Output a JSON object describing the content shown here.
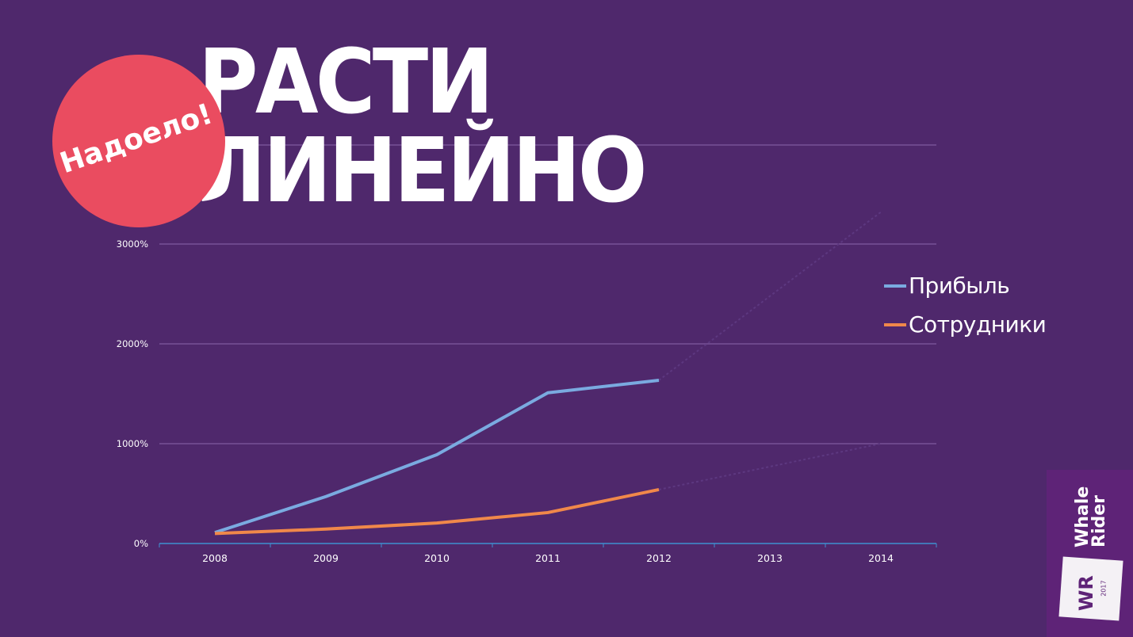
{
  "slide": {
    "title_line1": "РАСТИ",
    "title_line2": "ЛИНЕЙНО",
    "badge_text": "Надоело!",
    "background_color": "#4f286c",
    "badge_color": "#ea4c60"
  },
  "legend": {
    "items": [
      {
        "label": "Прибыль",
        "color": "#7aaae0"
      },
      {
        "label": "Сотрудники",
        "color": "#f0884a"
      }
    ]
  },
  "logo": {
    "name_line1": "Whale",
    "name_line2": "Rider",
    "monogram": "WR",
    "year": "2017"
  },
  "chart_data": {
    "type": "line",
    "title": "",
    "xlabel": "",
    "ylabel": "",
    "categories": [
      "2008",
      "2009",
      "2010",
      "2011",
      "2012",
      "2013",
      "2014"
    ],
    "y_ticks": [
      "0%",
      "1000%",
      "2000%",
      "3000%"
    ],
    "ylim": [
      0,
      3000
    ],
    "grid": true,
    "legend_position": "right",
    "series": [
      {
        "name": "Прибыль",
        "color": "#7aaae0",
        "values": [
          110,
          470,
          890,
          1510,
          1635,
          null,
          null
        ],
        "projection_to_2014": 3320
      },
      {
        "name": "Сотрудники",
        "color": "#f0884a",
        "values": [
          100,
          145,
          205,
          310,
          540,
          null,
          null
        ],
        "projection_to_2014": 1000
      }
    ]
  }
}
